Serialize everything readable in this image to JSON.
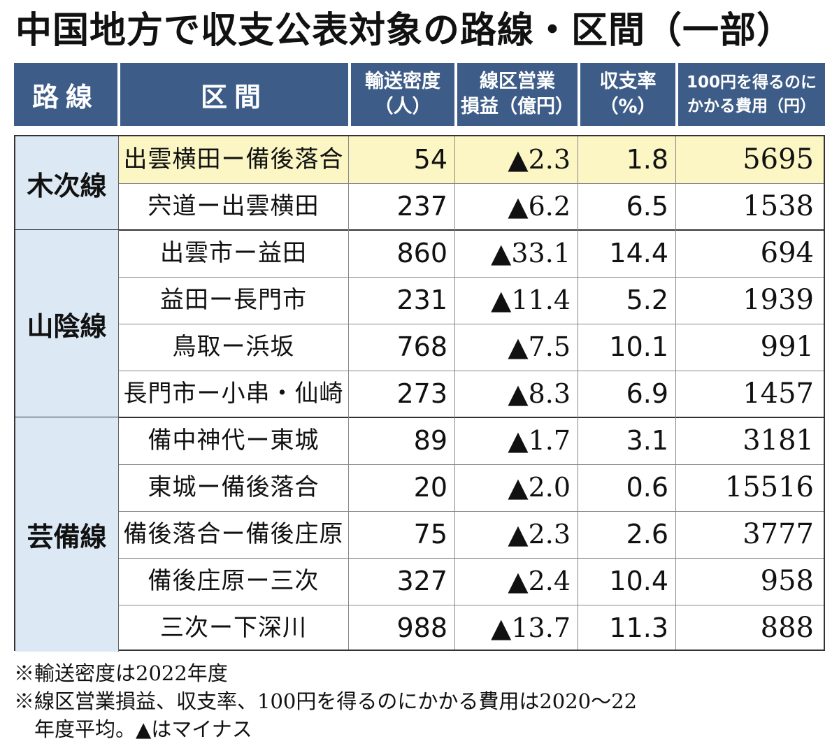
{
  "title": "中国地方で収支公表対象の路線・区間（一部）",
  "headers": {
    "line": "路線",
    "section": "区間",
    "density": "輸送密度\n（人）",
    "loss": "線区営業\n損益（億円）",
    "rate": "収支率\n（%）",
    "cost": "100円を得るのに\nかかる費用（円）"
  },
  "groups": [
    {
      "name": "木次線",
      "rows": [
        {
          "section": "出雲横田ー備後落合",
          "density": "54",
          "loss": "▲2.3",
          "rate": "1.8",
          "cost": "5695",
          "highlight": true
        },
        {
          "section": "宍道ー出雲横田",
          "density": "237",
          "loss": "▲6.2",
          "rate": "6.5",
          "cost": "1538"
        }
      ]
    },
    {
      "name": "山陰線",
      "rows": [
        {
          "section": "出雲市ー益田",
          "density": "860",
          "loss": "▲33.1",
          "rate": "14.4",
          "cost": "694"
        },
        {
          "section": "益田ー長門市",
          "density": "231",
          "loss": "▲11.4",
          "rate": "5.2",
          "cost": "1939"
        },
        {
          "section": "鳥取ー浜坂",
          "density": "768",
          "loss": "▲7.5",
          "rate": "10.1",
          "cost": "991"
        },
        {
          "section": "長門市ー小串・仙崎",
          "density": "273",
          "loss": "▲8.3",
          "rate": "6.9",
          "cost": "1457"
        }
      ]
    },
    {
      "name": "芸備線",
      "rows": [
        {
          "section": "備中神代ー東城",
          "density": "89",
          "loss": "▲1.7",
          "rate": "3.1",
          "cost": "3181"
        },
        {
          "section": "東城ー備後落合",
          "density": "20",
          "loss": "▲2.0",
          "rate": "0.6",
          "cost": "15516"
        },
        {
          "section": "備後落合ー備後庄原",
          "density": "75",
          "loss": "▲2.3",
          "rate": "2.6",
          "cost": "3777"
        },
        {
          "section": "備後庄原ー三次",
          "density": "327",
          "loss": "▲2.4",
          "rate": "10.4",
          "cost": "958"
        },
        {
          "section": "三次ー下深川",
          "density": "988",
          "loss": "▲13.7",
          "rate": "11.3",
          "cost": "888"
        }
      ]
    }
  ],
  "notes": [
    "※輸送密度は2022年度",
    "※線区営業損益、収支率、100円を得るのにかかる費用は2020～22",
    "　年度平均。▲はマイナス"
  ],
  "colors": {
    "header_bg": "#3d5d88",
    "group_bg": "#dce9f5",
    "highlight_bg": "#fbf6c4"
  }
}
